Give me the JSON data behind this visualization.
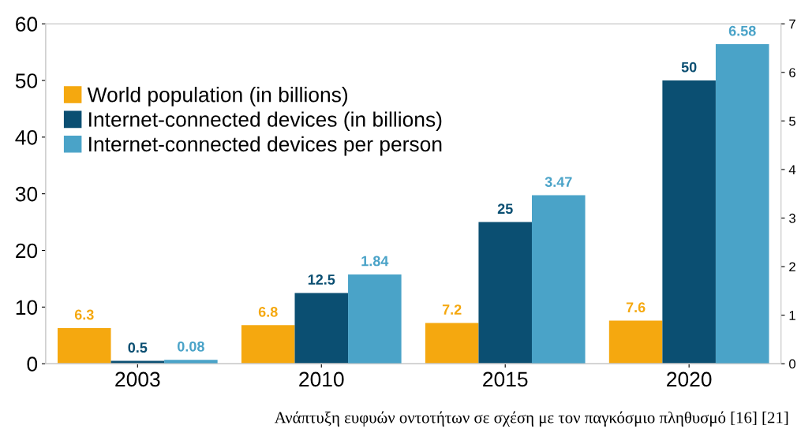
{
  "chart_data": {
    "type": "bar",
    "categories": [
      "2003",
      "2010",
      "2015",
      "2020"
    ],
    "series": [
      {
        "name": "World population (in billions)",
        "color": "#f5a80f",
        "values": [
          6.3,
          6.8,
          7.2,
          7.6
        ]
      },
      {
        "name": "Internet-connected devices (in billions)",
        "color": "#0b4f72",
        "values": [
          0.5,
          12.5,
          25,
          50
        ]
      },
      {
        "name": "Internet-connected devices per person",
        "color": "#4aa3c8",
        "values": [
          0.08,
          1.84,
          3.47,
          6.58
        ],
        "axis": "y2"
      }
    ],
    "ylim": [
      0,
      60
    ],
    "yticks": [
      0,
      10,
      20,
      30,
      40,
      50,
      60
    ],
    "y2lim": [
      0,
      7
    ],
    "y2ticks": [
      0,
      1,
      2,
      3,
      4,
      5,
      6,
      7
    ],
    "data_labels": true,
    "legend": "top left",
    "grid": false,
    "annotations": [
      "Ανάπτυξη ευφυών οντοτήτων σε σχέση με τον παγκόσμιο πληθυσμό [16] [21]"
    ]
  }
}
